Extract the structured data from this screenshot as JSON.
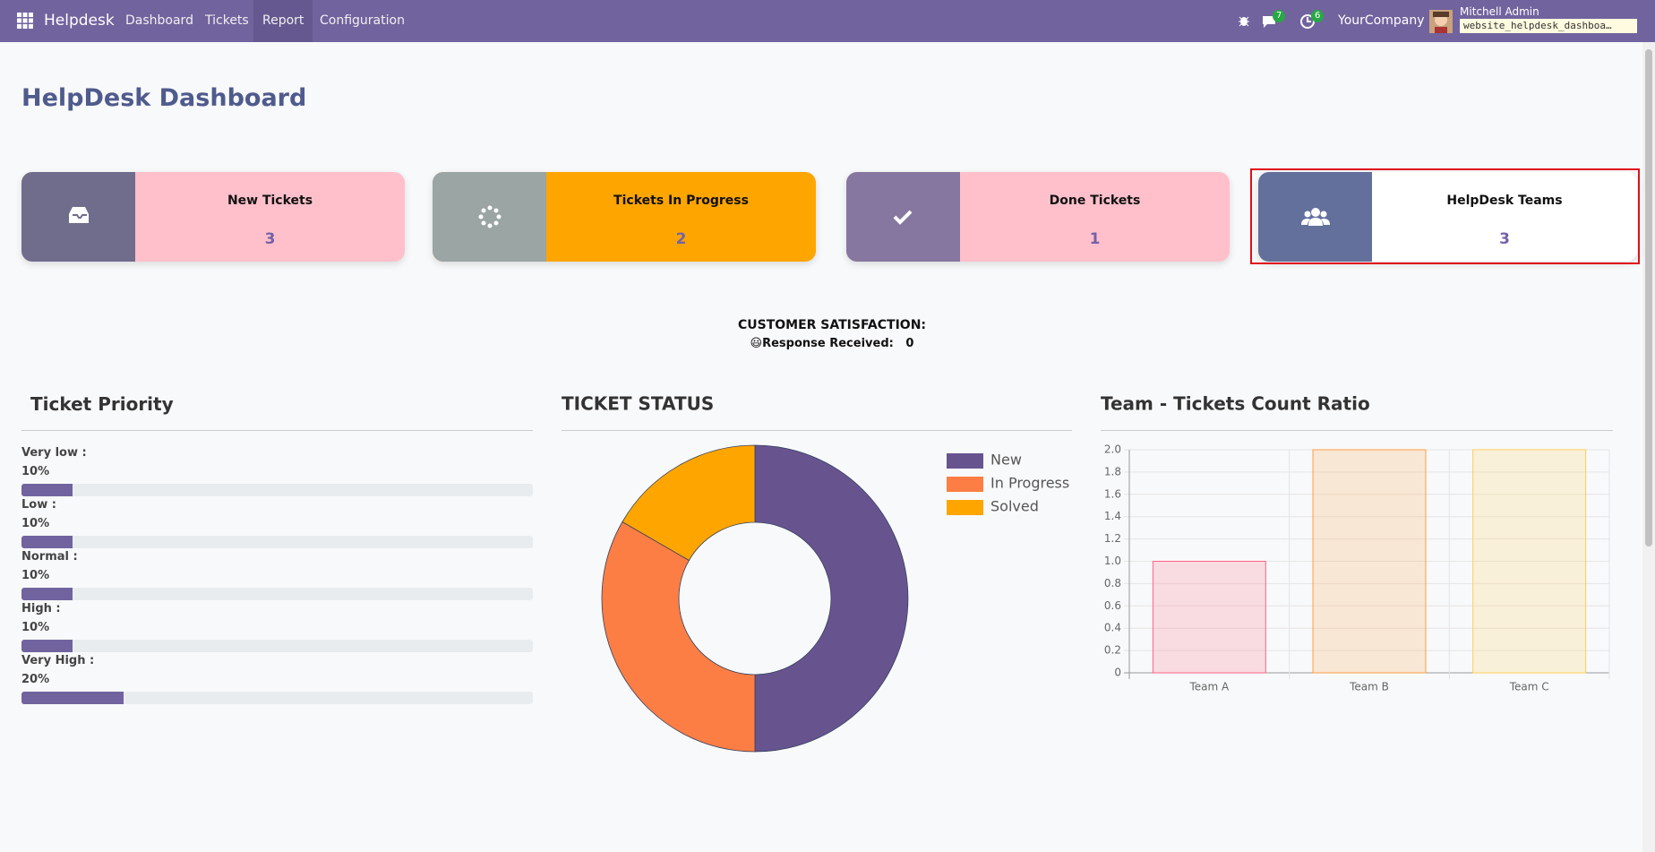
{
  "navbar": {
    "app": "Helpdesk",
    "menu": [
      "Dashboard",
      "Tickets",
      "Report",
      "Configuration"
    ],
    "messages": 7,
    "activities": 6,
    "company": "YourCompany",
    "user": "Mitchell Admin",
    "database": "website_helpdesk_dashboa…"
  },
  "header": {
    "title": "HelpDesk Dashboard"
  },
  "cards": [
    {
      "label": "New Tickets",
      "count": 3
    },
    {
      "label": "Tickets In Progress",
      "count": 2
    },
    {
      "label": "Done Tickets",
      "count": 1
    },
    {
      "label": "HelpDesk Teams",
      "count": 3
    }
  ],
  "satisfaction": {
    "title": "CUSTOMER SATISFACTION:",
    "label": "😃Response Received:",
    "value": 0
  },
  "priority": {
    "title": "Ticket Priority",
    "items": [
      {
        "label": "Very low :",
        "value": 10,
        "value_label": "10%"
      },
      {
        "label": "Low :",
        "value": 10,
        "value_label": "10%"
      },
      {
        "label": "Normal :",
        "value": 10,
        "value_label": "10%"
      },
      {
        "label": "High :",
        "value": 10,
        "value_label": "10%"
      },
      {
        "label": "Very High :",
        "value": 20,
        "value_label": "20%"
      }
    ]
  },
  "chart_data": [
    {
      "type": "pie",
      "title": "TICKET STATUS",
      "donut": true,
      "categories": [
        "New",
        "In Progress",
        "Solved"
      ],
      "values": [
        3,
        2,
        1
      ],
      "colors": [
        "#67548f",
        "#fd7e44",
        "#ffa500"
      ]
    },
    {
      "type": "bar",
      "title": "Team - Tickets Count Ratio",
      "categories": [
        "Team A",
        "Team B",
        "Team C"
      ],
      "values": [
        1,
        2,
        2
      ],
      "colors": [
        "rgba(255,99,132,0.2)",
        "rgba(255,159,64,0.2)",
        "rgba(255,205,86,0.2)"
      ],
      "border_colors": [
        "rgb(255,99,132)",
        "rgb(255,159,64)",
        "rgb(255,205,86)"
      ],
      "ylim": [
        0,
        2
      ],
      "yticks": [
        0,
        0.2,
        0.4,
        0.6,
        0.8,
        {
          "value": 1,
          "label": "1.0"
        },
        1.2,
        1.4,
        1.6,
        1.8,
        {
          "value": 2,
          "label": "2.0"
        }
      ],
      "grid": true
    }
  ]
}
